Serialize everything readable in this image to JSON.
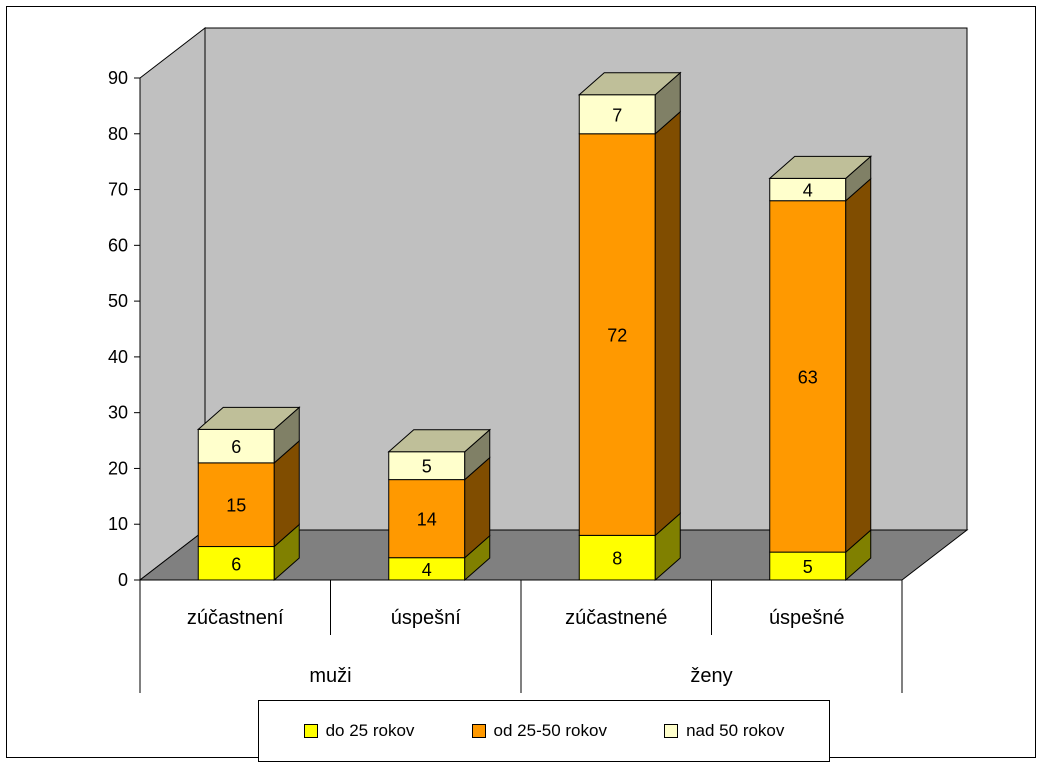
{
  "chart_data": {
    "type": "bar",
    "stacked": true,
    "three_d": true,
    "categories": [
      "zúčastnení",
      "úspešní",
      "zúčastnené",
      "úspešné"
    ],
    "groups": [
      {
        "label": "muži",
        "categories": [
          "zúčastnení",
          "úspešní"
        ]
      },
      {
        "label": "ženy",
        "categories": [
          "zúčastnené",
          "úspešné"
        ]
      }
    ],
    "series": [
      {
        "name": "do 25 rokov",
        "values": [
          6,
          4,
          8,
          5
        ],
        "color": "#ffff00"
      },
      {
        "name": "od 25-50 rokov",
        "values": [
          15,
          14,
          72,
          63
        ],
        "color": "#ff9900"
      },
      {
        "name": "nad 50 rokov",
        "values": [
          6,
          5,
          7,
          4
        ],
        "color": "#ffffcc"
      }
    ],
    "yticks": [
      0,
      10,
      20,
      30,
      40,
      50,
      60,
      70,
      80,
      90
    ],
    "ylim": [
      0,
      90
    ],
    "grid": false,
    "legend_position": "bottom",
    "wall_color": "#c0c0c0",
    "floor_color": "#808080"
  }
}
